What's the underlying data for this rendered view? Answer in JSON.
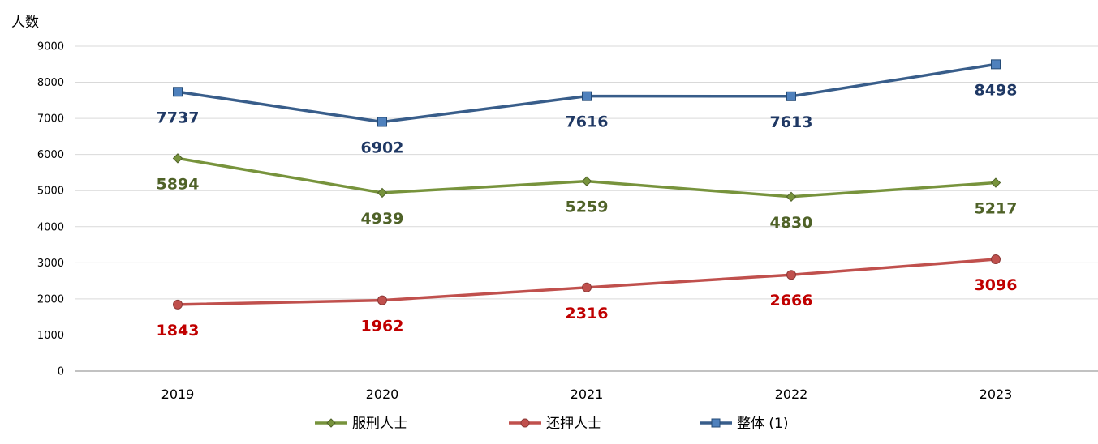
{
  "chart_data": {
    "type": "line",
    "title": "",
    "ylabel": "人数",
    "xlabel": "",
    "categories": [
      "2019",
      "2020",
      "2021",
      "2022",
      "2023"
    ],
    "ylim": [
      0,
      9000
    ],
    "yticks": [
      "0",
      "1000",
      "2000",
      "3000",
      "4000",
      "5000",
      "6000",
      "7000",
      "8000",
      "9000"
    ],
    "grid": true,
    "legend_position": "bottom",
    "series": [
      {
        "name": "服刑人士",
        "values": [
          5894,
          4939,
          5259,
          4830,
          5217
        ],
        "line_color": "#77933C",
        "label_color": "#4F6228",
        "marker": "diamond",
        "label_pos": "below"
      },
      {
        "name": "还押人士",
        "values": [
          1843,
          1962,
          2316,
          2666,
          3096
        ],
        "line_color": "#C0504D",
        "label_color": "#C00000",
        "marker": "circle",
        "label_pos": "below"
      },
      {
        "name": "整体 (1)",
        "values": [
          7737,
          6902,
          7616,
          7613,
          8498
        ],
        "line_color": "#385D8A",
        "label_color": "#1F3864",
        "marker": "square",
        "label_pos": "below"
      }
    ]
  }
}
